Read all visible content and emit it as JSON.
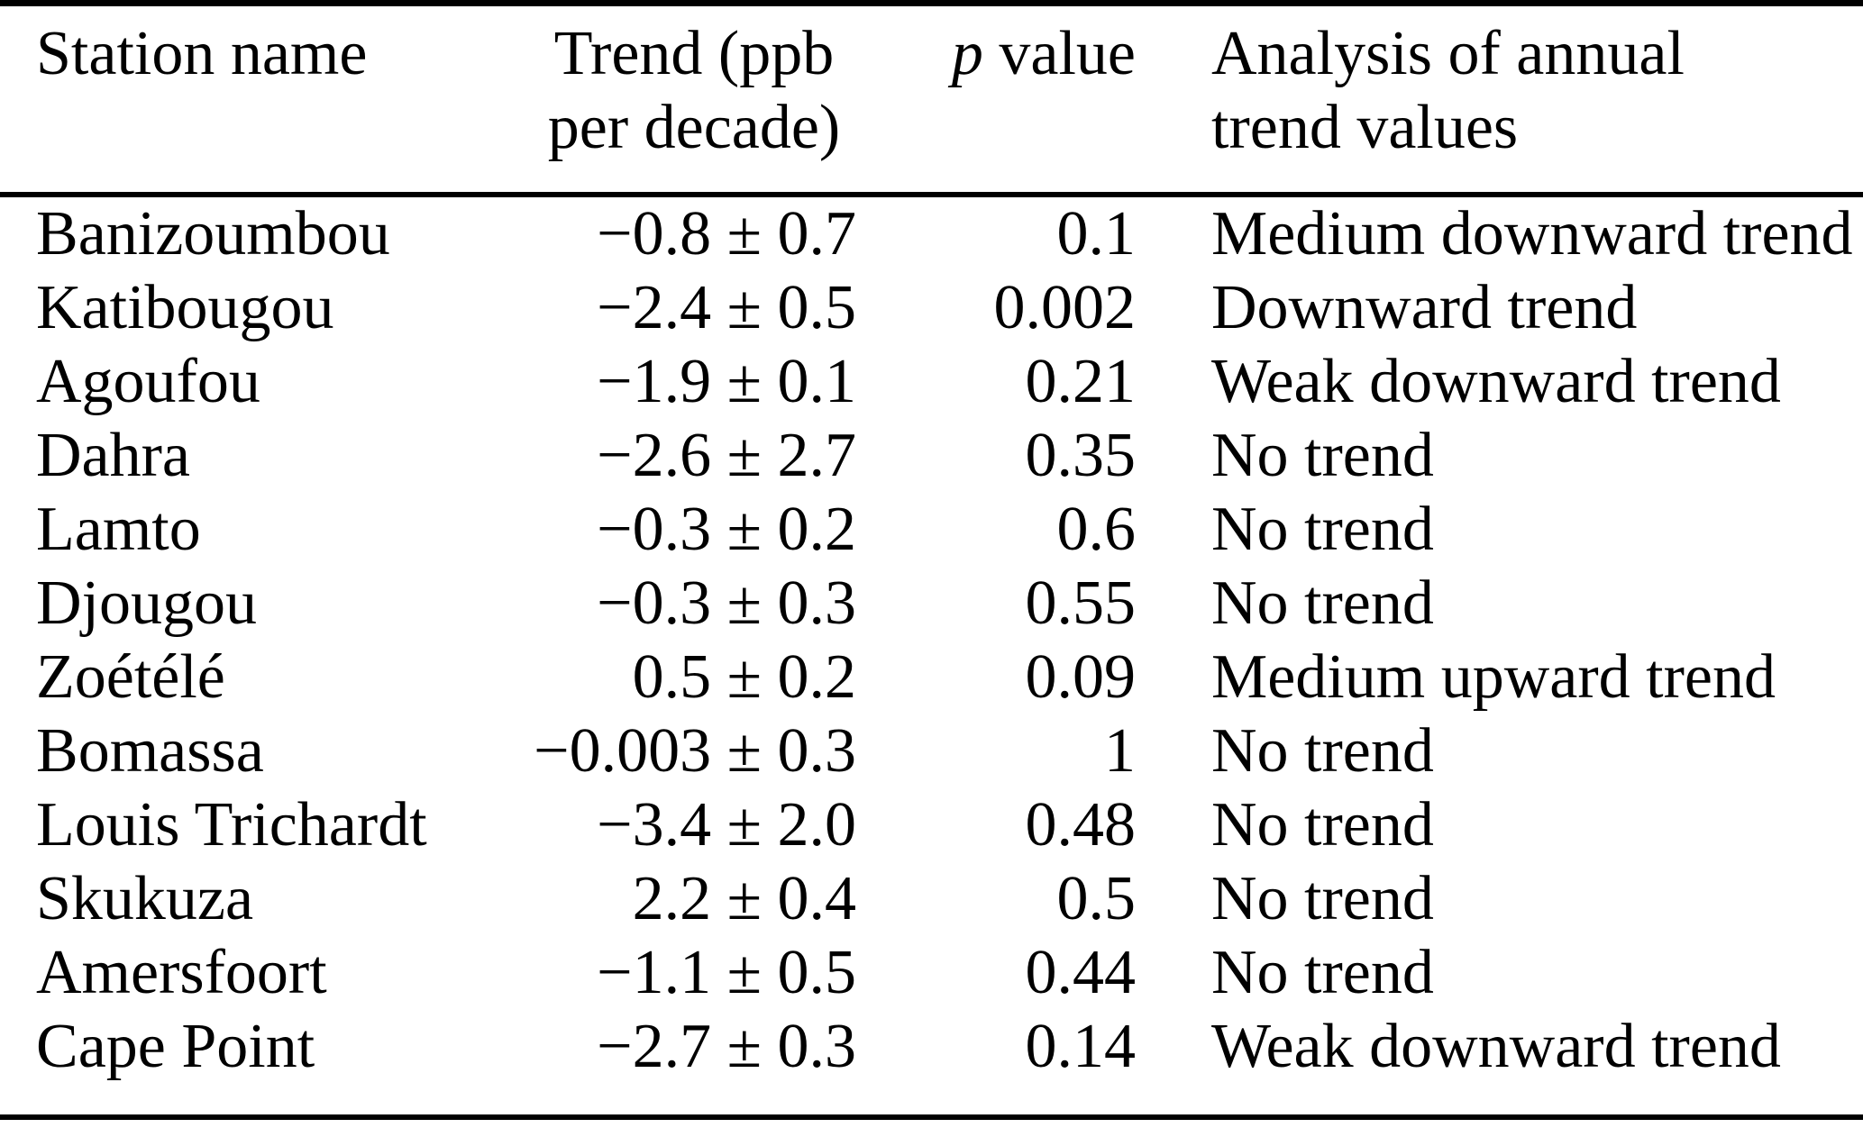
{
  "colors": {
    "background": "#ffffff",
    "text": "#000000",
    "rule": "#000000"
  },
  "table": {
    "headers": {
      "station": "Station name",
      "trend_line1": "Trend (ppb",
      "trend_line2": "per decade)",
      "p_italic": "p",
      "p_rest": " value",
      "analysis_line1": "Analysis of annual",
      "analysis_line2": "trend values"
    },
    "rows": [
      {
        "station": "Banizoumbou",
        "trend": "−0.8 ± 0.7",
        "p": "0.1",
        "analysis": "Medium downward trend"
      },
      {
        "station": "Katibougou",
        "trend": "−2.4 ± 0.5",
        "p": "0.002",
        "analysis": "Downward trend"
      },
      {
        "station": "Agoufou",
        "trend": "−1.9 ± 0.1",
        "p": "0.21",
        "analysis": "Weak downward trend"
      },
      {
        "station": "Dahra",
        "trend": "−2.6 ± 2.7",
        "p": "0.35",
        "analysis": "No trend"
      },
      {
        "station": "Lamto",
        "trend": "−0.3 ± 0.2",
        "p": "0.6",
        "analysis": "No trend"
      },
      {
        "station": "Djougou",
        "trend": "−0.3 ± 0.3",
        "p": "0.55",
        "analysis": "No trend"
      },
      {
        "station": "Zoétélé",
        "trend": "0.5 ± 0.2",
        "p": "0.09",
        "analysis": "Medium upward trend"
      },
      {
        "station": "Bomassa",
        "trend": "−0.003 ± 0.3",
        "p": "1",
        "analysis": "No trend"
      },
      {
        "station": "Louis Trichardt",
        "trend": "−3.4 ± 2.0",
        "p": "0.48",
        "analysis": "No trend"
      },
      {
        "station": "Skukuza",
        "trend": "2.2 ± 0.4",
        "p": "0.5",
        "analysis": "No trend"
      },
      {
        "station": "Amersfoort",
        "trend": "−1.1 ± 0.5",
        "p": "0.44",
        "analysis": "No trend"
      },
      {
        "station": "Cape Point",
        "trend": "−2.7 ± 0.3",
        "p": "0.14",
        "analysis": "Weak downward trend"
      }
    ]
  }
}
